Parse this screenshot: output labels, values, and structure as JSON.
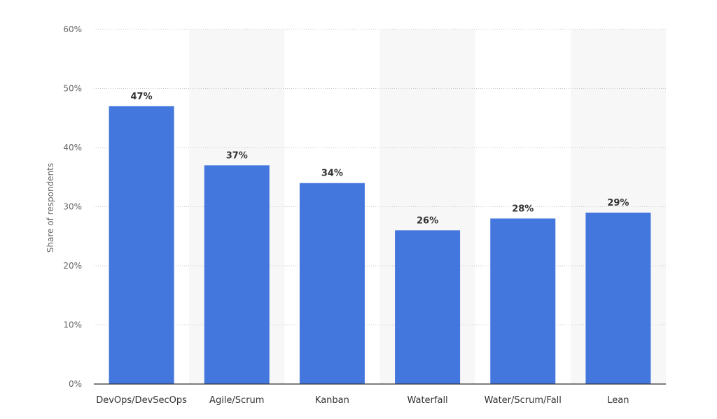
{
  "chart_data": {
    "type": "bar",
    "categories": [
      "DevOps/DevSecOps",
      "Agile/Scrum",
      "Kanban",
      "Waterfall",
      "Water/Scrum/Fall",
      "Lean"
    ],
    "values": [
      47,
      37,
      34,
      26,
      28,
      29
    ],
    "value_labels": [
      "47%",
      "37%",
      "34%",
      "26%",
      "28%",
      "29%"
    ],
    "ylabel": "Share of respondents",
    "ylim": [
      0,
      60
    ],
    "yticks": [
      0,
      10,
      20,
      30,
      40,
      50,
      60
    ],
    "ytick_labels": [
      "0%",
      "10%",
      "20%",
      "30%",
      "40%",
      "50%",
      "60%"
    ],
    "grid": true,
    "bar_color": "#4477dd",
    "band_color": "#f7f7f7"
  }
}
